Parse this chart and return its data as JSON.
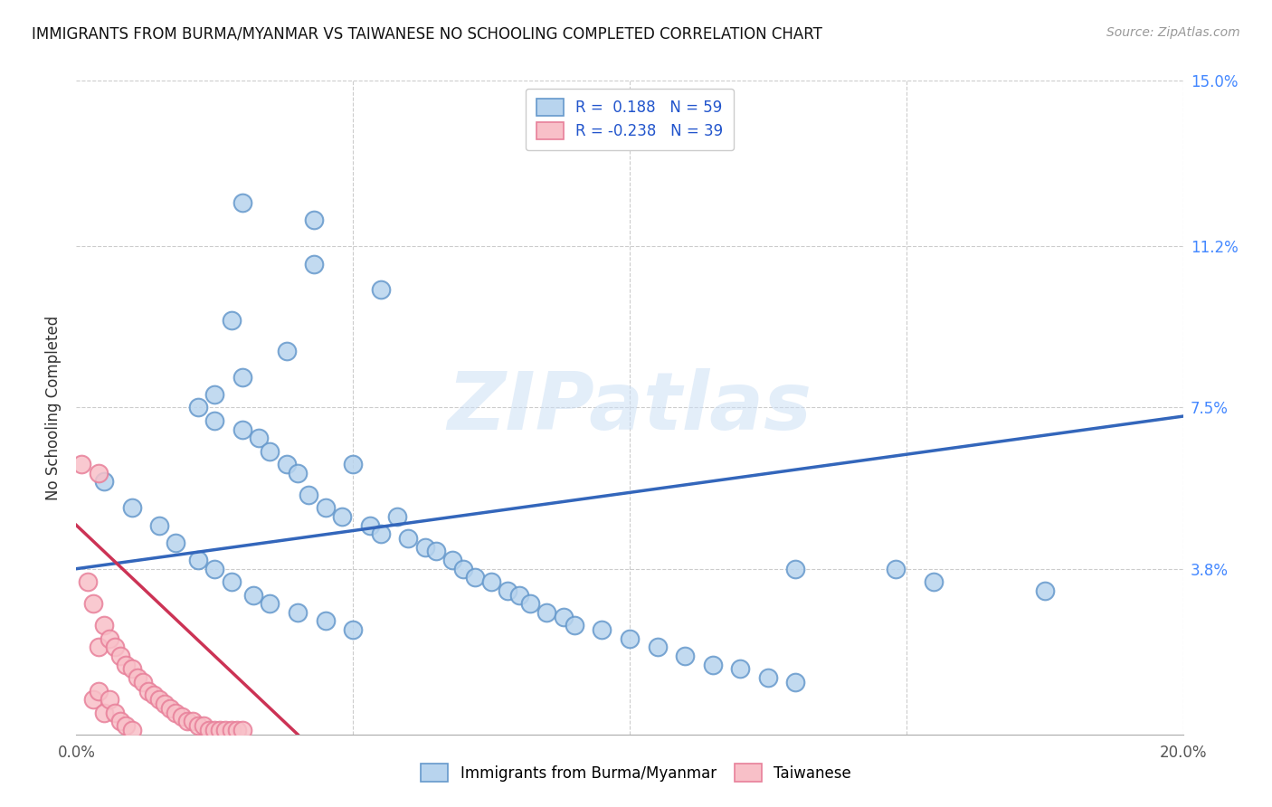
{
  "title": "IMMIGRANTS FROM BURMA/MYANMAR VS TAIWANESE NO SCHOOLING COMPLETED CORRELATION CHART",
  "source": "Source: ZipAtlas.com",
  "ylabel": "No Schooling Completed",
  "xlim": [
    0.0,
    0.2
  ],
  "ylim": [
    0.0,
    0.15
  ],
  "blue_face_color": "#b8d4ee",
  "blue_edge_color": "#6699cc",
  "pink_face_color": "#f8c0c8",
  "pink_edge_color": "#e8809a",
  "blue_line_color": "#3366bb",
  "pink_line_color": "#cc3355",
  "grid_color": "#cccccc",
  "background_color": "#ffffff",
  "R_blue": "0.188",
  "N_blue": "59",
  "R_pink": "-0.238",
  "N_pink": "39",
  "legend_label_blue": "Immigrants from Burma/Myanmar",
  "legend_label_pink": "Taiwanese",
  "watermark_text": "ZIPatlas",
  "ytick_vals": [
    0.038,
    0.075,
    0.112,
    0.15
  ],
  "ytick_labels": [
    "3.8%",
    "7.5%",
    "11.2%",
    "15.0%"
  ],
  "xtick_vals": [
    0.0,
    0.05,
    0.1,
    0.15,
    0.2
  ],
  "xtick_labels": [
    "0.0%",
    "",
    "",
    "",
    "20.0%"
  ],
  "blue_trendline": [
    0.0,
    0.2,
    0.038,
    0.073
  ],
  "pink_trendline": [
    0.0,
    0.04,
    0.048,
    0.0
  ],
  "blue_x": [
    0.03,
    0.043,
    0.043,
    0.055,
    0.028,
    0.038,
    0.03,
    0.025,
    0.022,
    0.025,
    0.03,
    0.033,
    0.035,
    0.038,
    0.04,
    0.042,
    0.045,
    0.048,
    0.05,
    0.053,
    0.055,
    0.058,
    0.06,
    0.063,
    0.065,
    0.068,
    0.07,
    0.072,
    0.075,
    0.078,
    0.08,
    0.082,
    0.085,
    0.088,
    0.09,
    0.095,
    0.1,
    0.105,
    0.11,
    0.115,
    0.12,
    0.125,
    0.13,
    0.13,
    0.148,
    0.155,
    0.175,
    0.005,
    0.01,
    0.015,
    0.018,
    0.022,
    0.025,
    0.028,
    0.032,
    0.035,
    0.04,
    0.045,
    0.05
  ],
  "blue_y": [
    0.122,
    0.118,
    0.108,
    0.102,
    0.095,
    0.088,
    0.082,
    0.078,
    0.075,
    0.072,
    0.07,
    0.068,
    0.065,
    0.062,
    0.06,
    0.055,
    0.052,
    0.05,
    0.062,
    0.048,
    0.046,
    0.05,
    0.045,
    0.043,
    0.042,
    0.04,
    0.038,
    0.036,
    0.035,
    0.033,
    0.032,
    0.03,
    0.028,
    0.027,
    0.025,
    0.024,
    0.022,
    0.02,
    0.018,
    0.016,
    0.015,
    0.013,
    0.012,
    0.038,
    0.038,
    0.035,
    0.033,
    0.058,
    0.052,
    0.048,
    0.044,
    0.04,
    0.038,
    0.035,
    0.032,
    0.03,
    0.028,
    0.026,
    0.024
  ],
  "pink_x": [
    0.001,
    0.002,
    0.003,
    0.003,
    0.004,
    0.004,
    0.005,
    0.005,
    0.006,
    0.006,
    0.007,
    0.007,
    0.008,
    0.008,
    0.009,
    0.009,
    0.01,
    0.01,
    0.011,
    0.012,
    0.013,
    0.014,
    0.015,
    0.016,
    0.017,
    0.018,
    0.019,
    0.02,
    0.021,
    0.022,
    0.023,
    0.024,
    0.025,
    0.026,
    0.027,
    0.028,
    0.029,
    0.03,
    0.004
  ],
  "pink_y": [
    0.062,
    0.035,
    0.03,
    0.008,
    0.02,
    0.01,
    0.025,
    0.005,
    0.022,
    0.008,
    0.02,
    0.005,
    0.018,
    0.003,
    0.016,
    0.002,
    0.015,
    0.001,
    0.013,
    0.012,
    0.01,
    0.009,
    0.008,
    0.007,
    0.006,
    0.005,
    0.004,
    0.003,
    0.003,
    0.002,
    0.002,
    0.001,
    0.001,
    0.001,
    0.001,
    0.001,
    0.001,
    0.001,
    0.06
  ]
}
